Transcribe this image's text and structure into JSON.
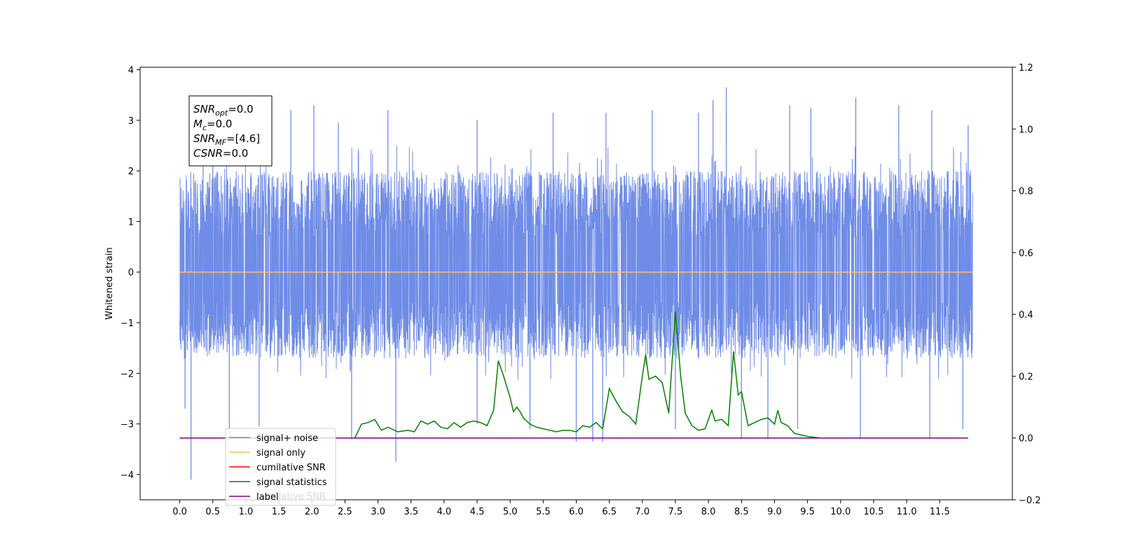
{
  "chart_data": {
    "type": "line",
    "title": "",
    "xlabel": "",
    "ylabel": "Whitened strain",
    "xlim": [
      -0.6,
      12.6
    ],
    "ylim": [
      -4.5,
      4.05
    ],
    "y2lim": [
      -0.2,
      1.2
    ],
    "grid": false,
    "x_ticks": [
      0.0,
      0.5,
      1.0,
      1.5,
      2.0,
      2.5,
      3.0,
      3.5,
      4.0,
      4.5,
      5.0,
      5.5,
      6.0,
      6.5,
      7.0,
      7.5,
      8.0,
      8.5,
      9.0,
      9.5,
      10.0,
      10.5,
      11.0,
      11.5
    ],
    "x_tick_labels": [
      "0.0",
      "0.5",
      "1.0",
      "1.5",
      "2.0",
      "2.5",
      "3.0",
      "3.5",
      "4.0",
      "4.5",
      "5.0",
      "5.5",
      "6.0",
      "6.5",
      "7.0",
      "7.5",
      "8.0",
      "8.5",
      "9.0",
      "9.5",
      "10.0",
      "10.5",
      "11.0",
      "11.5"
    ],
    "y_ticks": [
      -4,
      -3,
      -2,
      -1,
      0,
      1,
      2,
      3,
      4
    ],
    "y_tick_labels": [
      "−4",
      "−3",
      "−2",
      "−1",
      "0",
      "1",
      "2",
      "3",
      "4"
    ],
    "y2_ticks": [
      -0.2,
      0.0,
      0.2,
      0.4,
      0.6,
      0.8,
      1.0,
      1.2
    ],
    "y2_tick_labels": [
      "−0.2",
      "0.0",
      "0.2",
      "0.4",
      "0.6",
      "0.8",
      "1.0",
      "1.2"
    ],
    "noise": {
      "x_range": [
        0.0,
        12.0
      ],
      "typical_envelope": [
        -1.7,
        2.0
      ],
      "spikes": [
        {
          "x": 0.17,
          "y": -4.1
        },
        {
          "x": 3.27,
          "y": -3.75
        },
        {
          "x": 8.27,
          "y": 3.65
        },
        {
          "x": 10.23,
          "y": 3.45
        },
        {
          "x": 8.07,
          "y": 3.4
        },
        {
          "x": 2.03,
          "y": 3.3
        },
        {
          "x": 10.88,
          "y": 3.3
        },
        {
          "x": 1.68,
          "y": 3.2
        },
        {
          "x": 7.15,
          "y": 3.2
        },
        {
          "x": 9.23,
          "y": 3.3
        },
        {
          "x": 9.55,
          "y": 3.25
        },
        {
          "x": 3.15,
          "y": 3.2
        },
        {
          "x": 11.38,
          "y": 3.2
        },
        {
          "x": 5.65,
          "y": 3.15
        },
        {
          "x": 6.45,
          "y": 3.15
        },
        {
          "x": 7.85,
          "y": 3.15
        },
        {
          "x": 11.93,
          "y": 2.9
        },
        {
          "x": 0.5,
          "y": 2.9
        },
        {
          "x": 2.4,
          "y": 2.95
        },
        {
          "x": 4.5,
          "y": 3.0
        },
        {
          "x": 6.25,
          "y": -3.35
        },
        {
          "x": 6.4,
          "y": -3.35
        },
        {
          "x": 6.0,
          "y": -3.35
        },
        {
          "x": 8.5,
          "y": -3.3
        },
        {
          "x": 11.35,
          "y": -3.3
        },
        {
          "x": 2.6,
          "y": -3.3
        },
        {
          "x": 0.75,
          "y": -3.2
        },
        {
          "x": 11.85,
          "y": -3.1
        },
        {
          "x": 4.5,
          "y": -3.0
        },
        {
          "x": 9.35,
          "y": -3.1
        },
        {
          "x": 10.3,
          "y": -3.3
        },
        {
          "x": 8.9,
          "y": -3.3
        },
        {
          "x": 1.2,
          "y": -3.05
        },
        {
          "x": 5.3,
          "y": -3.1
        },
        {
          "x": 7.5,
          "y": -3.1
        },
        {
          "x": 0.08,
          "y": -2.7
        }
      ]
    },
    "series": [
      {
        "name": "signal+ noise",
        "color": "#6f8ce6",
        "axis": "left",
        "style": "dense-noise"
      },
      {
        "name": "signal only",
        "color": "#ffbf5f",
        "axis": "left",
        "x": [
          0.0,
          12.0
        ],
        "values": [
          0.0,
          0.0
        ]
      },
      {
        "name": "cumilative SNR",
        "color": "#ff0000",
        "axis": "right",
        "x": [
          0.0,
          11.93
        ],
        "values": [
          0.0,
          0.0
        ]
      },
      {
        "name": "signal statistics",
        "color": "#008000",
        "axis": "right",
        "x": [
          0.0,
          2.0,
          2.5,
          2.65,
          2.75,
          2.85,
          2.95,
          3.05,
          3.15,
          3.3,
          3.45,
          3.55,
          3.65,
          3.75,
          3.85,
          3.95,
          4.05,
          4.15,
          4.25,
          4.35,
          4.45,
          4.55,
          4.65,
          4.75,
          4.82,
          4.9,
          5.0,
          5.05,
          5.1,
          5.15,
          5.2,
          5.3,
          5.4,
          5.5,
          5.6,
          5.7,
          5.8,
          5.9,
          6.0,
          6.1,
          6.2,
          6.3,
          6.4,
          6.5,
          6.6,
          6.7,
          6.8,
          6.9,
          7.0,
          7.05,
          7.1,
          7.2,
          7.3,
          7.4,
          7.5,
          7.58,
          7.65,
          7.75,
          7.85,
          7.95,
          8.05,
          8.1,
          8.2,
          8.3,
          8.38,
          8.45,
          8.5,
          8.6,
          8.7,
          8.8,
          8.9,
          9.0,
          9.05,
          9.1,
          9.2,
          9.3,
          9.5,
          9.7,
          10.0,
          11.0,
          11.93
        ],
        "values": [
          0.0,
          0.0,
          0.0,
          0.0,
          0.045,
          0.05,
          0.06,
          0.025,
          0.035,
          0.02,
          0.025,
          0.02,
          0.055,
          0.045,
          0.055,
          0.035,
          0.03,
          0.05,
          0.035,
          0.05,
          0.055,
          0.05,
          0.04,
          0.09,
          0.25,
          0.2,
          0.13,
          0.085,
          0.1,
          0.085,
          0.065,
          0.045,
          0.035,
          0.03,
          0.025,
          0.02,
          0.025,
          0.025,
          0.02,
          0.04,
          0.035,
          0.05,
          0.03,
          0.16,
          0.12,
          0.085,
          0.07,
          0.045,
          0.2,
          0.27,
          0.19,
          0.2,
          0.18,
          0.08,
          0.41,
          0.2,
          0.08,
          0.04,
          0.025,
          0.03,
          0.09,
          0.055,
          0.06,
          0.04,
          0.28,
          0.14,
          0.15,
          0.04,
          0.05,
          0.06,
          0.065,
          0.045,
          0.09,
          0.05,
          0.04,
          0.015,
          0.005,
          0.0,
          0.0,
          0.0,
          0.0
        ]
      },
      {
        "name": "label",
        "color": "#800080",
        "axis": "right",
        "x": [
          0.0,
          11.93
        ],
        "values": [
          0.0,
          0.0
        ]
      }
    ],
    "legend_loc": "lower-left",
    "legend_ghost_text": "cumilative SNR",
    "annotation": {
      "lines": [
        {
          "sym": "SNR",
          "sub": "opt",
          "val": "=0.0"
        },
        {
          "sym": "M",
          "sub": "c",
          "val": "=0.0"
        },
        {
          "sym": "SNR",
          "sub": "MF",
          "val": "=[4.6]"
        },
        {
          "sym": "CSNR",
          "sub": "",
          "val": "=0.0"
        }
      ]
    }
  }
}
